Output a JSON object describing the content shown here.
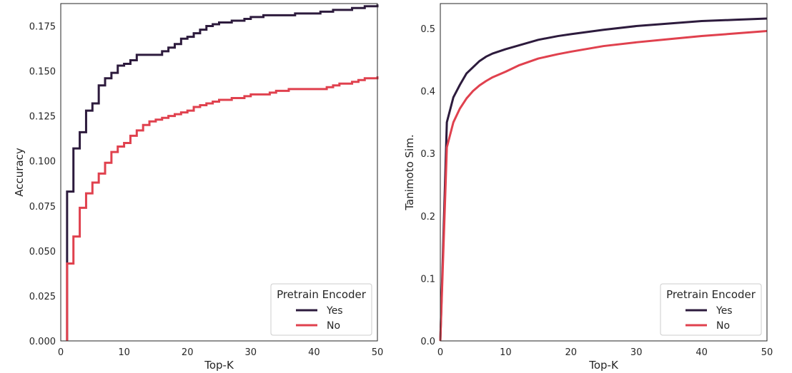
{
  "chart_data": [
    {
      "type": "line",
      "step": true,
      "xlabel": "Top-K",
      "ylabel": "Accuracy",
      "xlim": [
        0,
        50
      ],
      "ylim": [
        0,
        0.1875
      ],
      "xticks": [
        0,
        10,
        20,
        30,
        40,
        50
      ],
      "xtick_labels": [
        "0",
        "10",
        "20",
        "30",
        "40",
        "50"
      ],
      "yticks": [
        0,
        0.025,
        0.05,
        0.075,
        0.1,
        0.125,
        0.15,
        0.175
      ],
      "ytick_labels": [
        "0.000",
        "0.025",
        "0.050",
        "0.075",
        "0.100",
        "0.125",
        "0.150",
        "0.175"
      ],
      "grid": false,
      "legend": {
        "title": "Pretrain Encoder",
        "placement": "bottom-right"
      },
      "x": [
        1,
        2,
        3,
        4,
        5,
        6,
        7,
        8,
        9,
        10,
        11,
        12,
        13,
        14,
        15,
        16,
        17,
        18,
        19,
        20,
        21,
        22,
        23,
        24,
        25,
        26,
        27,
        28,
        29,
        30,
        31,
        32,
        33,
        34,
        35,
        36,
        37,
        38,
        39,
        40,
        41,
        42,
        43,
        44,
        45,
        46,
        47,
        48,
        49,
        50
      ],
      "series": [
        {
          "name": "Yes",
          "color": "#2d1b3d",
          "values": [
            0.083,
            0.107,
            0.116,
            0.128,
            0.132,
            0.142,
            0.146,
            0.149,
            0.153,
            0.154,
            0.156,
            0.159,
            0.159,
            0.159,
            0.159,
            0.161,
            0.163,
            0.165,
            0.168,
            0.169,
            0.171,
            0.173,
            0.175,
            0.176,
            0.177,
            0.177,
            0.178,
            0.178,
            0.179,
            0.18,
            0.18,
            0.181,
            0.181,
            0.181,
            0.181,
            0.181,
            0.182,
            0.182,
            0.182,
            0.182,
            0.183,
            0.183,
            0.184,
            0.184,
            0.184,
            0.185,
            0.185,
            0.186,
            0.186,
            0.187
          ]
        },
        {
          "name": "No",
          "color": "#e0414e",
          "values": [
            0.043,
            0.058,
            0.074,
            0.082,
            0.088,
            0.093,
            0.099,
            0.105,
            0.108,
            0.11,
            0.114,
            0.117,
            0.12,
            0.122,
            0.123,
            0.124,
            0.125,
            0.126,
            0.127,
            0.128,
            0.13,
            0.131,
            0.132,
            0.133,
            0.134,
            0.134,
            0.135,
            0.135,
            0.136,
            0.137,
            0.137,
            0.137,
            0.138,
            0.139,
            0.139,
            0.14,
            0.14,
            0.14,
            0.14,
            0.14,
            0.14,
            0.141,
            0.142,
            0.143,
            0.143,
            0.144,
            0.145,
            0.146,
            0.146,
            0.147
          ]
        }
      ]
    },
    {
      "type": "line",
      "step": false,
      "xlabel": "Top-K",
      "ylabel": "Tanimoto Sim.",
      "xlim": [
        0,
        50
      ],
      "ylim": [
        0,
        0.54
      ],
      "xticks": [
        0,
        10,
        20,
        30,
        40,
        50
      ],
      "xtick_labels": [
        "0",
        "10",
        "20",
        "30",
        "40",
        "50"
      ],
      "yticks": [
        0,
        0.1,
        0.2,
        0.3,
        0.4,
        0.5
      ],
      "ytick_labels": [
        "0.0",
        "0.1",
        "0.2",
        "0.3",
        "0.4",
        "0.5"
      ],
      "grid": false,
      "legend": {
        "title": "Pretrain Encoder",
        "placement": "bottom-right"
      },
      "x": [
        0,
        1,
        2,
        3,
        4,
        5,
        6,
        7,
        8,
        10,
        12,
        15,
        18,
        20,
        25,
        30,
        35,
        40,
        45,
        50
      ],
      "series": [
        {
          "name": "Yes",
          "color": "#2d1b3d",
          "values": [
            0.0,
            0.35,
            0.39,
            0.41,
            0.428,
            0.438,
            0.448,
            0.455,
            0.46,
            0.467,
            0.473,
            0.482,
            0.488,
            0.491,
            0.498,
            0.504,
            0.508,
            0.512,
            0.514,
            0.516
          ]
        },
        {
          "name": "No",
          "color": "#e0414e",
          "values": [
            0.0,
            0.31,
            0.35,
            0.372,
            0.388,
            0.4,
            0.409,
            0.416,
            0.422,
            0.431,
            0.441,
            0.452,
            0.459,
            0.463,
            0.472,
            0.478,
            0.483,
            0.488,
            0.492,
            0.496
          ]
        }
      ]
    }
  ]
}
